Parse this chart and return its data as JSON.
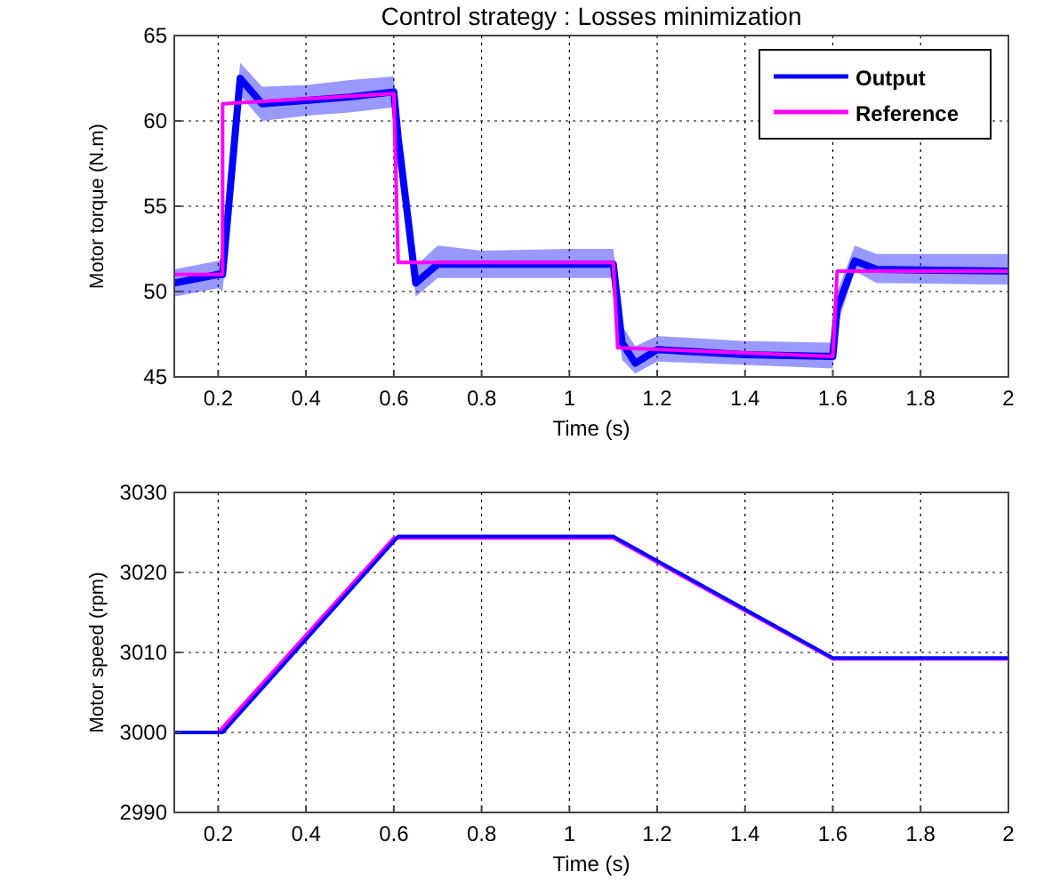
{
  "chart_data": [
    {
      "type": "line",
      "title": "Control strategy : Losses minimization",
      "xlabel": "Time (s)",
      "ylabel": "Motor torque (N.m)",
      "xlim": [
        0.1,
        2
      ],
      "xticks": [
        0.2,
        0.4,
        0.6,
        0.8,
        1,
        1.2,
        1.4,
        1.6,
        1.8,
        2
      ],
      "ylim": [
        45,
        65
      ],
      "yticks": [
        45,
        50,
        55,
        60,
        65
      ],
      "grid": true,
      "legend": "top right",
      "line_style": "solid",
      "series": [
        {
          "name": "Output",
          "color": "#0000ff",
          "x": [
            0.1,
            0.2,
            0.21,
            0.25,
            0.3,
            0.4,
            0.5,
            0.6,
            0.61,
            0.65,
            0.7,
            0.8,
            1.0,
            1.1,
            1.12,
            1.15,
            1.2,
            1.4,
            1.6,
            1.61,
            1.65,
            1.7,
            2.0
          ],
          "values": [
            50.5,
            51,
            51,
            62.5,
            61,
            61.2,
            61.4,
            61.7,
            59,
            50.5,
            51.6,
            51.6,
            51.6,
            51.6,
            47,
            45.8,
            46.6,
            46.3,
            46.2,
            49,
            51.8,
            51.3,
            51.2
          ],
          "lower": [
            49.7,
            50.2,
            50,
            61.5,
            60,
            60.3,
            60.5,
            60.8,
            58,
            49.7,
            50.8,
            50.8,
            50.8,
            50.8,
            46,
            45.2,
            45.9,
            45.7,
            45.5,
            48,
            51.2,
            50.5,
            50.4
          ],
          "upper": [
            51.3,
            51.8,
            52,
            63.4,
            62,
            62.1,
            62.4,
            62.6,
            60,
            51.5,
            52.7,
            52.4,
            52.5,
            52.5,
            48,
            46.8,
            47.4,
            47.1,
            47,
            50,
            52.7,
            52.2,
            52.2
          ]
        },
        {
          "name": "Reference",
          "color": "#ff00ff",
          "x": [
            0.1,
            0.21,
            0.21,
            0.6,
            0.61,
            1.1,
            1.11,
            1.6,
            1.61,
            2
          ],
          "values": [
            51,
            51,
            61,
            61.6,
            51.7,
            51.7,
            46.7,
            46.2,
            51.2,
            51.2
          ]
        }
      ]
    },
    {
      "type": "line",
      "xlabel": "Time (s)",
      "ylabel": "Motor speed (rpm)",
      "xlim": [
        0.1,
        2
      ],
      "xticks": [
        0.2,
        0.4,
        0.6,
        0.8,
        1,
        1.2,
        1.4,
        1.6,
        1.8,
        2
      ],
      "ylim": [
        2990,
        3030
      ],
      "yticks": [
        2990,
        3000,
        3010,
        3020,
        3030
      ],
      "grid": true,
      "line_style": "solid",
      "series": [
        {
          "color": "#ff00ff",
          "x": [
            0.1,
            0.2,
            0.6,
            1.1,
            1.6,
            2
          ],
          "values": [
            3000,
            3000,
            3024.3,
            3024.3,
            3009.2,
            3009.2
          ]
        },
        {
          "color": "#0000ff",
          "x": [
            0.1,
            0.21,
            0.61,
            1.1,
            1.6,
            2
          ],
          "values": [
            3000,
            3000,
            3024.5,
            3024.5,
            3009.3,
            3009.3
          ]
        }
      ]
    }
  ]
}
